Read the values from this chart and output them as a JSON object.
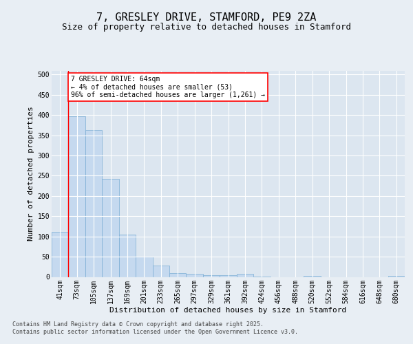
{
  "title": "7, GRESLEY DRIVE, STAMFORD, PE9 2ZA",
  "subtitle": "Size of property relative to detached houses in Stamford",
  "xlabel": "Distribution of detached houses by size in Stamford",
  "ylabel": "Number of detached properties",
  "categories": [
    "41sqm",
    "73sqm",
    "105sqm",
    "137sqm",
    "169sqm",
    "201sqm",
    "233sqm",
    "265sqm",
    "297sqm",
    "329sqm",
    "361sqm",
    "392sqm",
    "424sqm",
    "456sqm",
    "488sqm",
    "520sqm",
    "552sqm",
    "584sqm",
    "616sqm",
    "648sqm",
    "680sqm"
  ],
  "values": [
    111,
    397,
    363,
    242,
    104,
    50,
    28,
    9,
    7,
    5,
    5,
    7,
    1,
    0,
    0,
    2,
    0,
    0,
    0,
    0,
    3
  ],
  "bar_color": "#c5d9ef",
  "bar_edge_color": "#7aadd4",
  "annotation_text": "7 GRESLEY DRIVE: 64sqm\n← 4% of detached houses are smaller (53)\n96% of semi-detached houses are larger (1,261) →",
  "background_color": "#e8eef4",
  "plot_bg_color": "#dce6f0",
  "footer_text": "Contains HM Land Registry data © Crown copyright and database right 2025.\nContains public sector information licensed under the Open Government Licence v3.0.",
  "ylim": [
    0,
    510
  ],
  "yticks": [
    0,
    50,
    100,
    150,
    200,
    250,
    300,
    350,
    400,
    450,
    500
  ],
  "title_fontsize": 11,
  "subtitle_fontsize": 9,
  "axis_label_fontsize": 8,
  "tick_fontsize": 7,
  "footer_fontsize": 6
}
